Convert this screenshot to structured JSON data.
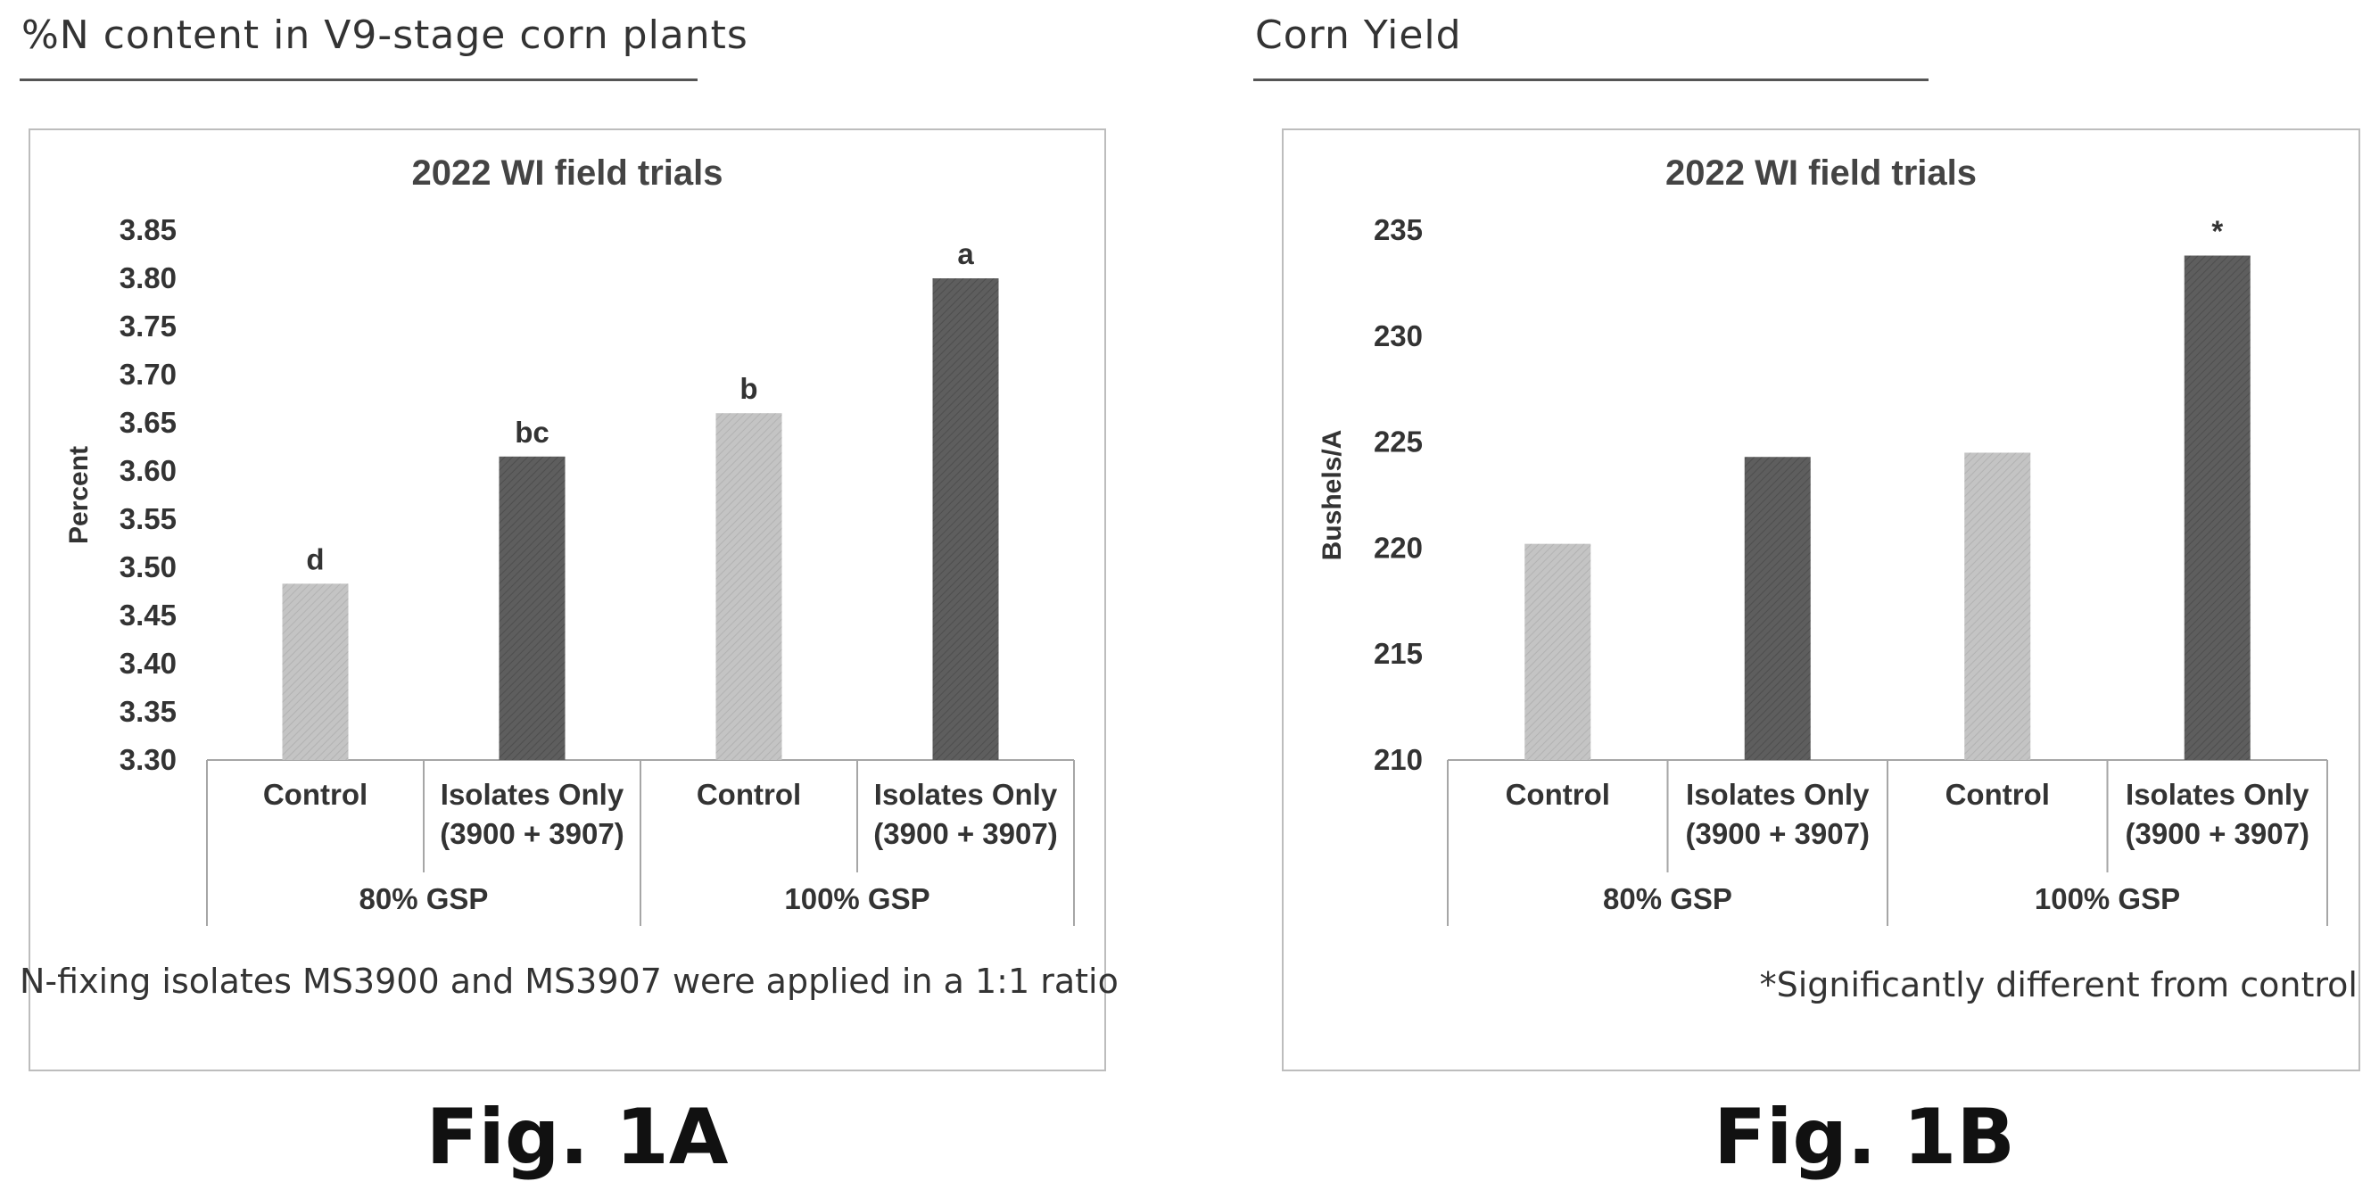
{
  "panels": [
    {
      "heading": "%N content in V9-stage corn plants",
      "note": "N-fixing isolates MS3900 and MS3907 were applied in a 1:1 ratio",
      "figure_label": "Fig. 1A"
    },
    {
      "heading": "Corn Yield",
      "note": "*Significantly different from control",
      "figure_label": "Fig. 1B"
    }
  ],
  "colors": {
    "control": "#c4c4c4",
    "isolates": "#5e5e5e",
    "frame": "#bdbdbd",
    "axis": "#a6a6a6"
  },
  "chart_data": [
    {
      "type": "bar",
      "title": "2022 WI field trials",
      "ylabel": "Percent",
      "xlabel": "",
      "ylim": [
        3.3,
        3.85
      ],
      "yticks": [
        "3.30",
        "3.35",
        "3.40",
        "3.45",
        "3.50",
        "3.55",
        "3.60",
        "3.65",
        "3.70",
        "3.75",
        "3.80",
        "3.85"
      ],
      "grid": false,
      "categories": [
        {
          "lines": [
            "Control"
          ],
          "group": "80% GSP"
        },
        {
          "lines": [
            "Isolates Only",
            "(3900 + 3907)"
          ],
          "group": "80% GSP"
        },
        {
          "lines": [
            "Control"
          ],
          "group": "100% GSP"
        },
        {
          "lines": [
            "Isolates Only",
            "(3900 + 3907)"
          ],
          "group": "100% GSP"
        }
      ],
      "groups": [
        "80% GSP",
        "100% GSP"
      ],
      "values": [
        3.483,
        3.615,
        3.66,
        3.8
      ],
      "bar_kinds": [
        "control",
        "isolates",
        "control",
        "isolates"
      ],
      "data_labels": [
        "d",
        "bc",
        "b",
        "a"
      ]
    },
    {
      "type": "bar",
      "title": "2022 WI field trials",
      "ylabel": "Bushels/A",
      "xlabel": "",
      "ylim": [
        210,
        235
      ],
      "yticks": [
        "210",
        "215",
        "220",
        "225",
        "230",
        "235"
      ],
      "grid": false,
      "categories": [
        {
          "lines": [
            "Control"
          ],
          "group": "80% GSP"
        },
        {
          "lines": [
            "Isolates Only",
            "(3900 + 3907)"
          ],
          "group": "80% GSP"
        },
        {
          "lines": [
            "Control"
          ],
          "group": "100% GSP"
        },
        {
          "lines": [
            "Isolates Only",
            "(3900 + 3907)"
          ],
          "group": "100% GSP"
        }
      ],
      "groups": [
        "80% GSP",
        "100% GSP"
      ],
      "values": [
        220.2,
        224.3,
        224.5,
        233.8
      ],
      "bar_kinds": [
        "control",
        "isolates",
        "control",
        "isolates"
      ],
      "data_labels": [
        "",
        "",
        "",
        "*"
      ]
    }
  ]
}
